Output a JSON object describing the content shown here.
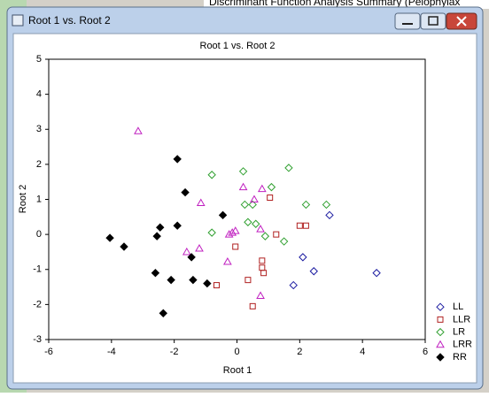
{
  "background": {
    "header": "Discriminant Function Analysis Summary (Pelophylax"
  },
  "window": {
    "title": "Root 1 vs. Root 2"
  },
  "chart_data": {
    "type": "scatter",
    "title": "Root 1 vs. Root 2",
    "xlabel": "Root 1",
    "ylabel": "Root 2",
    "xlim": [
      -6,
      6
    ],
    "ylim": [
      -3,
      5
    ],
    "xticks": [
      -6,
      -4,
      -2,
      0,
      2,
      4,
      6
    ],
    "yticks": [
      -3,
      -2,
      -1,
      0,
      1,
      2,
      3,
      4,
      5
    ],
    "legend": "lower right",
    "series": [
      {
        "name": "LL",
        "color": "#1a1aa0",
        "marker": "diamond",
        "filled": false,
        "x": [
          2.95,
          2.1,
          2.45,
          1.8,
          4.45
        ],
        "y": [
          0.55,
          -0.65,
          -1.05,
          -1.45,
          -1.1
        ]
      },
      {
        "name": "LLR",
        "color": "#b02020",
        "marker": "square",
        "filled": false,
        "x": [
          1.05,
          2.0,
          2.2,
          1.25,
          -0.05,
          -0.65,
          0.35,
          0.8,
          0.8,
          0.85,
          0.5
        ],
        "y": [
          1.05,
          0.25,
          0.25,
          0.0,
          -0.35,
          -1.45,
          -1.3,
          -0.75,
          -0.95,
          -1.1,
          -2.05
        ]
      },
      {
        "name": "LR",
        "color": "#30a030",
        "marker": "diamond",
        "filled": false,
        "x": [
          -0.8,
          0.2,
          1.65,
          1.1,
          2.2,
          2.85,
          0.25,
          0.5,
          0.35,
          0.6,
          -0.8,
          0.9,
          1.5
        ],
        "y": [
          1.7,
          1.8,
          1.9,
          1.35,
          0.85,
          0.85,
          0.85,
          0.85,
          0.35,
          0.3,
          0.05,
          -0.05,
          -0.2
        ]
      },
      {
        "name": "LRR",
        "color": "#c020c0",
        "marker": "triangle",
        "filled": false,
        "x": [
          -3.15,
          0.2,
          0.8,
          0.55,
          -1.15,
          0.75,
          -0.05,
          -0.15,
          -0.25,
          -0.3,
          -1.2,
          -1.6,
          0.75
        ],
        "y": [
          2.95,
          1.35,
          1.3,
          1.0,
          0.9,
          0.15,
          0.1,
          0.05,
          0.0,
          -0.78,
          -0.4,
          -0.5,
          -1.75
        ]
      },
      {
        "name": "RR",
        "color": "#000000",
        "marker": "diamond",
        "filled": true,
        "x": [
          -1.9,
          -1.65,
          -0.45,
          -1.9,
          -2.45,
          -2.55,
          -4.05,
          -3.6,
          -1.45,
          -2.6,
          -2.1,
          -1.4,
          -0.95,
          -2.35
        ],
        "y": [
          2.15,
          1.2,
          0.55,
          0.25,
          0.2,
          -0.05,
          -0.1,
          -0.35,
          -0.65,
          -1.1,
          -1.3,
          -1.3,
          -1.4,
          -2.25
        ]
      }
    ]
  }
}
